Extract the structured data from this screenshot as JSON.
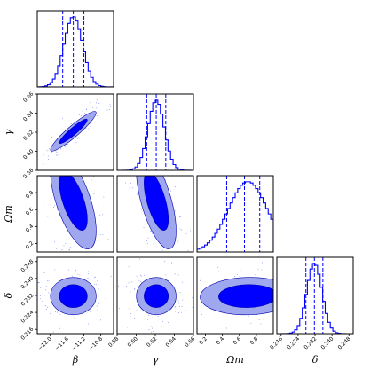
{
  "chart_data": {
    "type": "corner",
    "colors": {
      "main": "#0000ff",
      "inner_contour": "#0000ff",
      "outer_contour": "#9fa7ee",
      "outline": "#0000aa",
      "scatter": "#6f7ff0"
    },
    "parameters": [
      {
        "key": "beta",
        "label": "β",
        "range": [
          -12.3,
          -10.5
        ],
        "ticks": [
          -12.0,
          -11.6,
          -11.2,
          -10.8
        ],
        "tick_labels": [
          "−12.0",
          "−11.6",
          "−11.2",
          "−10.8"
        ],
        "mean": -11.45,
        "sd": 0.22,
        "quantiles": [
          -11.7,
          -11.45,
          -11.2
        ]
      },
      {
        "key": "gamma",
        "label": "γ",
        "range": [
          0.58,
          0.66
        ],
        "ticks": [
          0.58,
          0.6,
          0.62,
          0.64,
          0.66
        ],
        "tick_labels": [
          "0.58",
          "0.60",
          "0.62",
          "0.64",
          "0.66"
        ],
        "mean": 0.621,
        "sd": 0.0085,
        "quantiles": [
          0.611,
          0.621,
          0.631
        ]
      },
      {
        "key": "omega_m",
        "label": "Ωm",
        "range": [
          0.1,
          1.0
        ],
        "ticks": [
          0.2,
          0.4,
          0.6,
          0.8
        ],
        "tick_labels": [
          "0.2",
          "0.4",
          "0.6",
          "0.8"
        ],
        "mean": 0.7,
        "sd": 0.23,
        "quantiles": [
          0.45,
          0.66,
          0.84
        ]
      },
      {
        "key": "delta",
        "label": "δ",
        "range": [
          0.214,
          0.25
        ],
        "ticks": [
          0.216,
          0.224,
          0.232,
          0.24,
          0.248
        ],
        "tick_labels": [
          "0.216",
          "0.224",
          "0.232",
          "0.240",
          "0.248"
        ],
        "mean": 0.2317,
        "sd": 0.0036,
        "quantiles": [
          0.2277,
          0.2317,
          0.2357
        ]
      }
    ],
    "correlations": [
      {
        "pair": [
          "gamma",
          "beta"
        ],
        "r": 0.93
      },
      {
        "pair": [
          "omega_m",
          "beta"
        ],
        "r": -0.62
      },
      {
        "pair": [
          "omega_m",
          "gamma"
        ],
        "r": -0.62
      },
      {
        "pair": [
          "delta",
          "beta"
        ],
        "r": 0.0
      },
      {
        "pair": [
          "delta",
          "gamma"
        ],
        "r": 0.0
      },
      {
        "pair": [
          "delta",
          "omega_m"
        ],
        "r": 0.05
      }
    ],
    "contour_levels": [
      "68%",
      "95%"
    ],
    "histogram_bins": 30,
    "scatter_points_per_panel": 140
  }
}
